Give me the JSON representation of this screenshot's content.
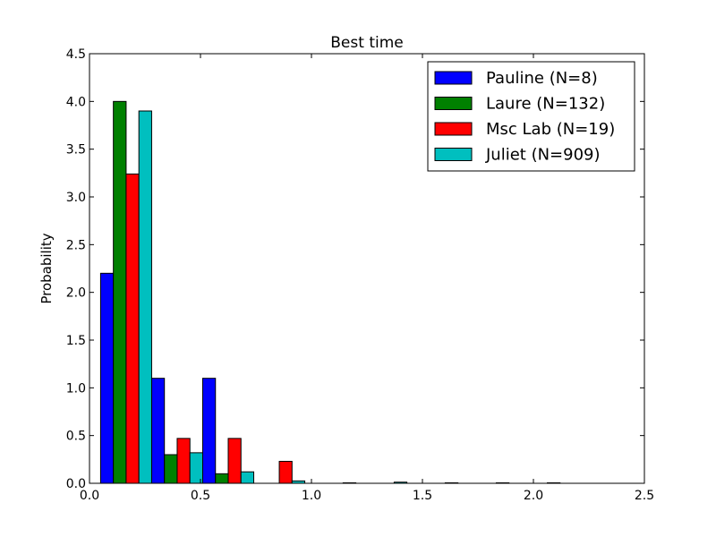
{
  "chart_data": {
    "type": "bar",
    "title": "Best time",
    "xlabel": "",
    "ylabel": "Probability",
    "xlim": [
      0.0,
      2.5
    ],
    "ylim": [
      0.0,
      4.5
    ],
    "x_ticks": [
      "0.0",
      "0.5",
      "1.0",
      "1.5",
      "2.0",
      "2.5"
    ],
    "y_ticks": [
      "0.0",
      "0.5",
      "1.0",
      "1.5",
      "2.0",
      "2.5",
      "3.0",
      "3.5",
      "4.0",
      "4.5"
    ],
    "grid": false,
    "legend_position": "top-right",
    "bin_edges": [
      0.05,
      0.28,
      0.51,
      0.74,
      0.97,
      1.2,
      1.43,
      1.66,
      1.89,
      2.12,
      2.35
    ],
    "series": [
      {
        "name": "Pauline (N=8)",
        "color": "#0000ff",
        "values": [
          2.2,
          1.1,
          1.1,
          0,
          0,
          0,
          0,
          0,
          0,
          0
        ]
      },
      {
        "name": "Laure (N=132)",
        "color": "#008000",
        "values": [
          4.0,
          0.3,
          0.1,
          0,
          0,
          0,
          0,
          0,
          0,
          0
        ]
      },
      {
        "name": "Msc Lab (N=19)",
        "color": "#ff0000",
        "values": [
          3.24,
          0.47,
          0.47,
          0.23,
          0,
          0,
          0,
          0,
          0,
          0
        ]
      },
      {
        "name": "Juliet (N=909)",
        "color": "#00bfbf",
        "values": [
          3.9,
          0.32,
          0.12,
          0.025,
          0.005,
          0.012,
          0.005,
          0.005,
          0.005,
          0
        ]
      }
    ]
  }
}
